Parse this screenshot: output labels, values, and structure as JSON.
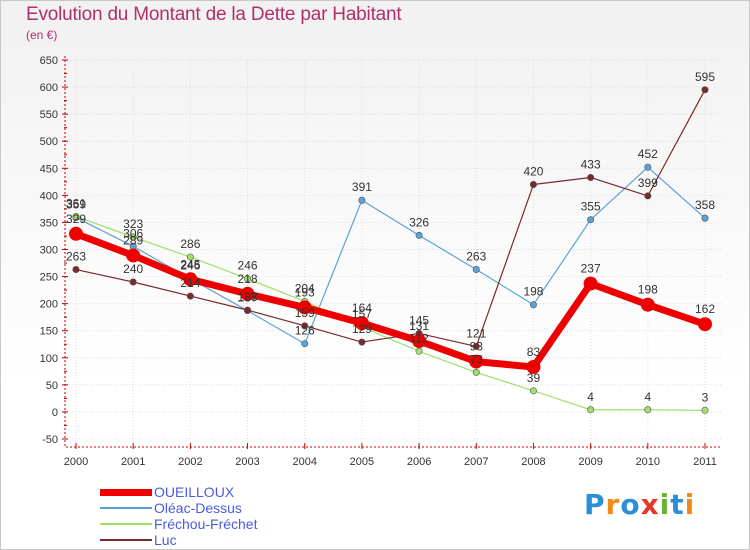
{
  "header": {
    "title": "Evolution du Montant de la Dette par Habitant",
    "unit": "(en €)"
  },
  "brand": {
    "text": "Proxiti",
    "letter_colors": [
      "#2b8fd8",
      "#f28a1a",
      "#2b8fd8",
      "#e23a2a",
      "#68b531",
      "#2b8fd8",
      "#f28a1a"
    ]
  },
  "chart_data": {
    "type": "line",
    "title": "Evolution du Montant de la Dette par Habitant",
    "ylabel": "(en €)",
    "xlabel": "",
    "x": [
      "2000",
      "2001",
      "2002",
      "2003",
      "2004",
      "2005",
      "2006",
      "2007",
      "2008",
      "2009",
      "2010",
      "2011"
    ],
    "ylim": [
      -50,
      650
    ],
    "yticks": [
      -50,
      0,
      50,
      100,
      150,
      200,
      250,
      300,
      350,
      400,
      450,
      500,
      550,
      600,
      650
    ],
    "grid": true,
    "legend_position": "bottom-left",
    "series": [
      {
        "name": "OUEILLOUX",
        "color": "#ee0000",
        "values": [
          329,
          289,
          245,
          218,
          193,
          164,
          131,
          93,
          83,
          237,
          198,
          162
        ],
        "bold": true
      },
      {
        "name": "Oléac-Dessus",
        "color": "#5ba2d6",
        "values": [
          359,
          306,
          246,
          187,
          126,
          391,
          326,
          263,
          198,
          355,
          452,
          358
        ],
        "bold": false
      },
      {
        "name": "Fréchou-Fréchet",
        "color": "#9ee06a",
        "values": [
          361,
          323,
          286,
          246,
          204,
          157,
          112,
          73,
          39,
          4,
          4,
          3
        ],
        "bold": false
      },
      {
        "name": "Luc",
        "color": "#7a2a2a",
        "values": [
          263,
          240,
          214,
          188,
          159,
          129,
          145,
          121,
          420,
          433,
          399,
          595
        ],
        "bold": false
      }
    ]
  }
}
